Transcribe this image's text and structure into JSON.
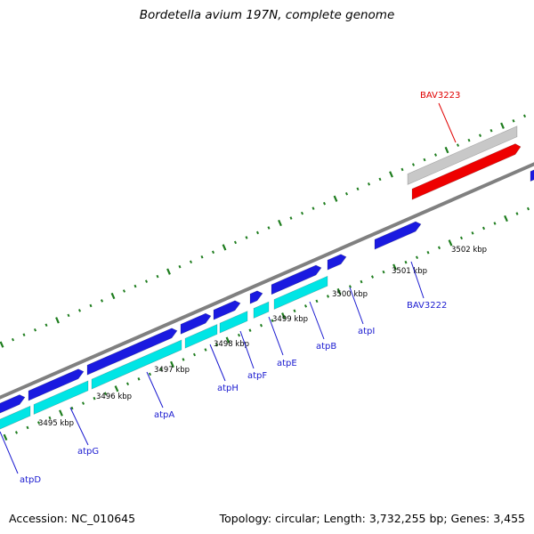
{
  "title": "Bordetella avium 197N, complete genome",
  "footer": {
    "accession": "Accession: NC_010645",
    "summary": "Topology: circular; Length: 3,732,255 bp; Genes: 3,455"
  },
  "colors": {
    "genome_line": "#808080",
    "tick": "#1e7d1e",
    "forward_gene": "#1a1ae0",
    "reverse_gene": "#00e5e5",
    "highlight_gene": "#ee0000",
    "highlight_rna": "#c8c8c8",
    "label_forward": "#1a1ad0",
    "label_highlight": "#e00000"
  },
  "ruler": {
    "labels": [
      {
        "text": "3495 kbp",
        "kbp": 3495
      },
      {
        "text": "3496 kbp",
        "kbp": 3496
      },
      {
        "text": "3497 kbp",
        "kbp": 3497
      },
      {
        "text": "3498 kbp",
        "kbp": 3498
      },
      {
        "text": "3499 kbp",
        "kbp": 3499
      },
      {
        "text": "3500 kbp",
        "kbp": 3500
      },
      {
        "text": "3501 kbp",
        "kbp": 3501
      },
      {
        "text": "3502 kbp",
        "kbp": 3502
      }
    ]
  },
  "gene_labels": [
    {
      "name": "atpD",
      "kind": "forward"
    },
    {
      "name": "atpG",
      "kind": "forward"
    },
    {
      "name": "atpA",
      "kind": "forward"
    },
    {
      "name": "atpH",
      "kind": "forward"
    },
    {
      "name": "atpF",
      "kind": "forward"
    },
    {
      "name": "atpE",
      "kind": "forward"
    },
    {
      "name": "atpB",
      "kind": "forward"
    },
    {
      "name": "atpI",
      "kind": "forward"
    },
    {
      "name": "BAV3222",
      "kind": "forward"
    },
    {
      "name": "BAV3223",
      "kind": "highlight"
    }
  ]
}
